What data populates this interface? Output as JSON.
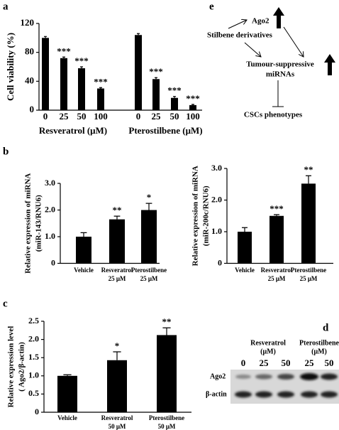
{
  "panel_labels": [
    "a",
    "b",
    "c",
    "d",
    "e"
  ],
  "chart_data": [
    {
      "type": "bar",
      "ylabel": [
        "Cell viability (%)"
      ],
      "ylim": [
        0,
        120
      ],
      "yticks": [
        0,
        40,
        80,
        120
      ],
      "color": "#000000",
      "groups": [
        {
          "name": "Resveratrol (μM)",
          "categories": [
            "0",
            "25",
            "50",
            "100"
          ],
          "values": [
            100,
            72,
            58,
            30
          ],
          "errors": [
            2,
            1.5,
            2,
            1.2
          ],
          "annotations": [
            null,
            "***",
            "***",
            "***"
          ]
        },
        {
          "name": "Pterostilbene (μM)",
          "categories": [
            "0",
            "25",
            "50",
            "100"
          ],
          "values": [
            104,
            43,
            17,
            7
          ],
          "errors": [
            2,
            2,
            2,
            1
          ],
          "annotations": [
            null,
            "***",
            "***",
            "***"
          ]
        }
      ]
    },
    {
      "type": "bar",
      "ylabel": [
        "Relative expression of miRNA",
        "(miR-143/RNU6)"
      ],
      "ylim": [
        0,
        3
      ],
      "yticks": [
        0,
        {
          "value": 1,
          "label": "1.0"
        },
        {
          "value": 2,
          "label": "2.0"
        },
        {
          "value": 3,
          "label": "3.0"
        }
      ],
      "color": "#000000",
      "groups": [
        {
          "categories": [
            [
              "Vehicle"
            ],
            [
              "Resveratrol",
              "25 μM"
            ],
            [
              "Pterostilbene",
              "25 μM"
            ]
          ],
          "values": [
            1.0,
            1.65,
            2.0
          ],
          "errors": [
            0.15,
            0.12,
            0.25
          ],
          "annotations": [
            null,
            "**",
            "*"
          ]
        }
      ]
    },
    {
      "type": "bar",
      "ylabel": [
        "Relative expression of miRNA",
        "(miR-200c/RNU6)"
      ],
      "ylim": [
        0,
        3
      ],
      "yticks": [
        0,
        {
          "value": 1,
          "label": "1.0"
        },
        {
          "value": 2,
          "label": "2.0"
        },
        {
          "value": 3,
          "label": "3.0"
        }
      ],
      "color": "#000000",
      "groups": [
        {
          "categories": [
            [
              "Vehicle"
            ],
            [
              "Resveratrol",
              "25 μM"
            ],
            [
              "Pterostilbene",
              "25 μM"
            ]
          ],
          "values": [
            1.0,
            1.5,
            2.52
          ],
          "errors": [
            0.13,
            0.04,
            0.25
          ],
          "annotations": [
            null,
            "***",
            "**"
          ]
        }
      ]
    },
    {
      "type": "bar",
      "ylabel": [
        "Relative expression level",
        "( Ago2/β-actin)"
      ],
      "ylim": [
        0,
        2.5
      ],
      "yticks": [
        0,
        0.5,
        {
          "value": 1,
          "label": "1.0"
        },
        1.5,
        {
          "value": 2,
          "label": "2.0"
        },
        2.5
      ],
      "color": "#000000",
      "groups": [
        {
          "categories": [
            [
              "Vehicle"
            ],
            [
              "Resveratrol",
              "50 μM"
            ],
            [
              "Pterostilbene",
              "50 μM"
            ]
          ],
          "values": [
            1.0,
            1.43,
            2.12
          ],
          "errors": [
            0.03,
            0.23,
            0.2
          ],
          "annotations": [
            null,
            "*",
            "**"
          ]
        }
      ]
    }
  ],
  "blot": {
    "groups": [
      {
        "name": "Resveratrol",
        "unit": "(μM)"
      },
      {
        "name": "Pterostilbene",
        "unit": "(μM)"
      }
    ],
    "lanes": [
      "0",
      "25",
      "50",
      "25",
      "50"
    ],
    "rows": [
      "Ago2",
      "β-actin"
    ]
  },
  "diagram": {
    "nodes": [
      "Ago2",
      "Stilbene derivatives",
      "Tumour-suppressive",
      "miRNAs",
      "CSCs phenotypes"
    ]
  }
}
